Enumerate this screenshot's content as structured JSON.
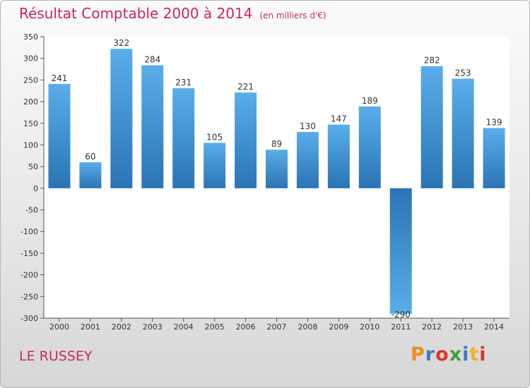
{
  "header": {
    "title": "Résultat Comptable 2000 à 2014",
    "unit_note": "(en milliers d'€)"
  },
  "commune_name": "LE RUSSEY",
  "logo_text": "Proxiti",
  "chart_data": {
    "type": "bar",
    "title": "Résultat Comptable 2000 à 2014",
    "subtitle": "(en milliers d'€)",
    "categories": [
      "2000",
      "2001",
      "2002",
      "2003",
      "2004",
      "2005",
      "2006",
      "2007",
      "2008",
      "2009",
      "2010",
      "2011",
      "2012",
      "2013",
      "2014"
    ],
    "values": [
      241,
      60,
      322,
      284,
      231,
      105,
      221,
      89,
      130,
      147,
      189,
      -290,
      282,
      253,
      139
    ],
    "data_labels": [
      "241",
      "60",
      "322",
      "284",
      "231",
      "105",
      "221",
      "89",
      "130",
      "147",
      "189",
      "-290",
      "282",
      "253",
      "139"
    ],
    "ylim": [
      -300,
      350
    ],
    "yticks": [
      350,
      300,
      250,
      200,
      150,
      100,
      50,
      0,
      -50,
      -100,
      -150,
      -200,
      -250,
      -300
    ],
    "xlabel": "",
    "ylabel": "",
    "grid": false,
    "colors": {
      "bar_top": "#5aaeea",
      "bar_bottom": "#2a74b4",
      "plot_bg": "#ffffff"
    }
  }
}
